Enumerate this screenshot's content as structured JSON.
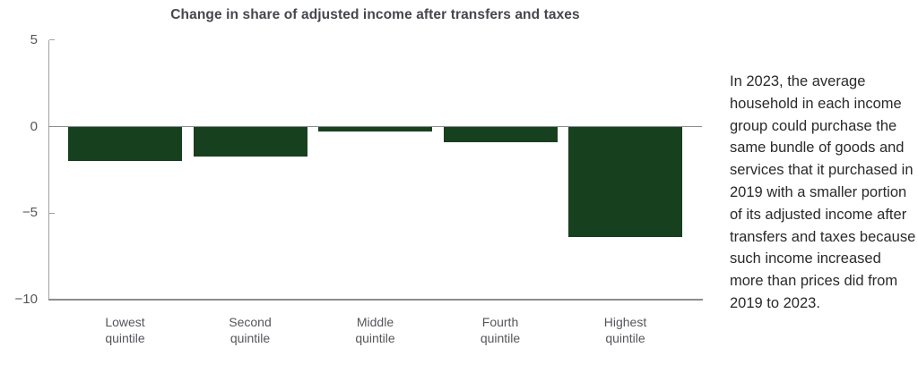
{
  "chart_data": {
    "type": "bar",
    "title": "Change in share of adjusted income after transfers and taxes",
    "categories": [
      "Lowest quintile",
      "Second quintile",
      "Middle quintile",
      "Fourth quintile",
      "Highest quintile"
    ],
    "values": [
      -2.0,
      -1.7,
      -0.3,
      -0.9,
      -6.4
    ],
    "xlabel": "",
    "ylabel": "",
    "ylim": [
      -10,
      5
    ],
    "yticks": [
      5,
      0,
      -5,
      -10
    ],
    "ytick_labels": [
      "5",
      "0",
      "−5",
      "−10"
    ],
    "grid": false,
    "legend": null,
    "bar_color": "#17401f"
  },
  "annotation": {
    "text": "In 2023, the average\nhousehold in each income\ngroup could purchase the\nsame bundle of goods and\nservices that it purchased in\n2019 with a smaller portion\nof its adjusted income after\ntransfers and taxes because\nsuch income increased\nmore than prices did from\n2019 to 2023."
  },
  "colors": {
    "bar_green": "#17401f",
    "axis_line": "#a0a2a5",
    "baseline": "#8b8d90",
    "tick_label": "#54565a",
    "title": "#45474d",
    "annotation_text": "#2a2a2d"
  }
}
